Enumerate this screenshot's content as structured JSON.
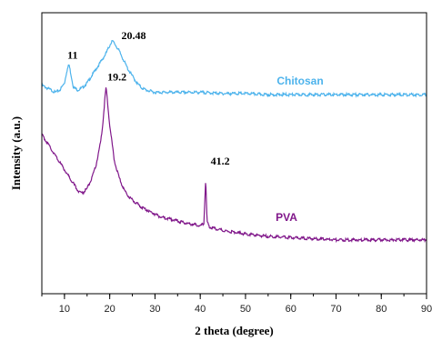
{
  "chart_data": {
    "type": "line",
    "xlabel": "2 theta (degree)",
    "ylabel": "Intensity (a.u.)",
    "xlim": [
      5,
      90
    ],
    "xticks": [
      10,
      20,
      30,
      40,
      50,
      60,
      70,
      80,
      90
    ],
    "yticks_shown": false,
    "series": [
      {
        "name": "Chitosan",
        "color": "#4db3ec",
        "x": [
          5,
          6,
          7,
          8,
          8.5,
          9,
          10,
          10.5,
          11,
          11.5,
          12,
          13,
          14,
          15,
          16,
          17,
          18,
          19,
          20,
          20.48,
          21,
          22,
          23,
          24,
          25,
          26,
          27,
          28,
          30,
          35,
          40,
          45,
          50,
          55,
          60,
          70,
          80,
          90
        ],
        "y": [
          0.89,
          0.88,
          0.87,
          0.86,
          0.865,
          0.87,
          0.9,
          0.95,
          0.98,
          0.93,
          0.88,
          0.87,
          0.88,
          0.9,
          0.93,
          0.96,
          0.99,
          1.02,
          1.06,
          1.08,
          1.07,
          1.04,
          1.0,
          0.96,
          0.93,
          0.9,
          0.88,
          0.87,
          0.86,
          0.86,
          0.86,
          0.855,
          0.855,
          0.85,
          0.85,
          0.85,
          0.85,
          0.85
        ]
      },
      {
        "name": "PVA",
        "color": "#80178a",
        "x": [
          5,
          6,
          7,
          8,
          9,
          10,
          11,
          12,
          13,
          14,
          15,
          16,
          17,
          18,
          18.5,
          19,
          19.2,
          19.5,
          20,
          21,
          22,
          23,
          24,
          25,
          27,
          29,
          31,
          33,
          35,
          37,
          39,
          40,
          40.8,
          41.2,
          41.5,
          42,
          45,
          50,
          55,
          60,
          65,
          70,
          80,
          90
        ],
        "y": [
          0.68,
          0.65,
          0.62,
          0.59,
          0.56,
          0.53,
          0.5,
          0.47,
          0.44,
          0.43,
          0.45,
          0.49,
          0.55,
          0.65,
          0.73,
          0.85,
          0.88,
          0.82,
          0.72,
          0.57,
          0.5,
          0.45,
          0.42,
          0.4,
          0.37,
          0.35,
          0.33,
          0.32,
          0.31,
          0.3,
          0.295,
          0.29,
          0.3,
          0.49,
          0.31,
          0.285,
          0.27,
          0.255,
          0.245,
          0.24,
          0.235,
          0.23,
          0.23,
          0.23
        ]
      }
    ],
    "annotations": [
      {
        "text": "11",
        "series": 0,
        "x": 11
      },
      {
        "text": "20.48",
        "series": 0,
        "x": 20.48
      },
      {
        "text": "19.2",
        "series": 1,
        "x": 19.2
      },
      {
        "text": "41.2",
        "series": 1,
        "x": 41.2
      }
    ]
  }
}
